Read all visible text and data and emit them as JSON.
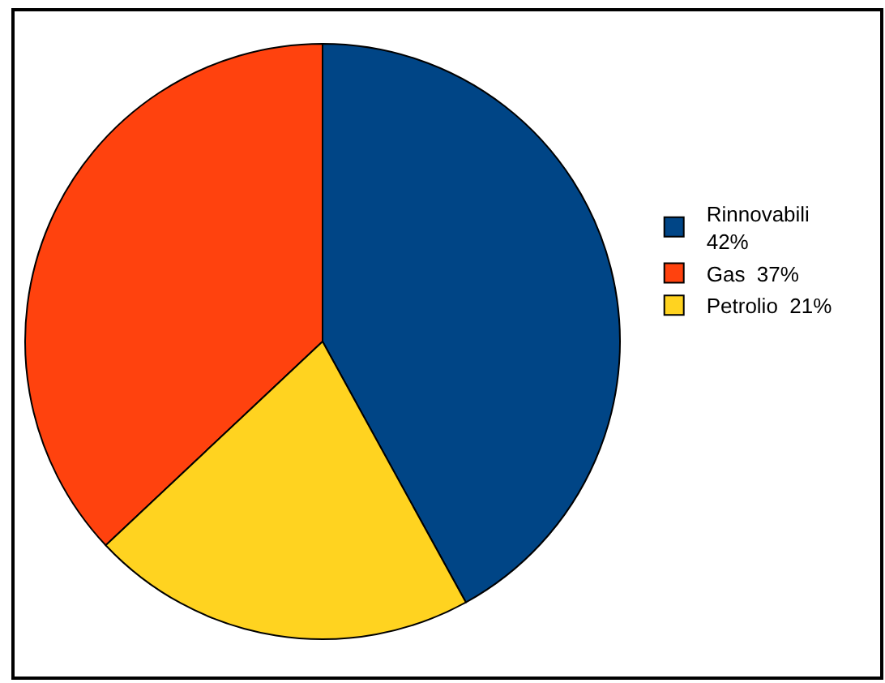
{
  "chart_data": {
    "type": "pie",
    "categories": [
      "Rinnovabili",
      "Gas",
      "Petrolio"
    ],
    "values": [
      42,
      37,
      21
    ],
    "value_labels": [
      "42%",
      "37%",
      "21%"
    ],
    "colors": [
      "#004586",
      "#ff420e",
      "#ffd320"
    ],
    "legend": "right"
  }
}
